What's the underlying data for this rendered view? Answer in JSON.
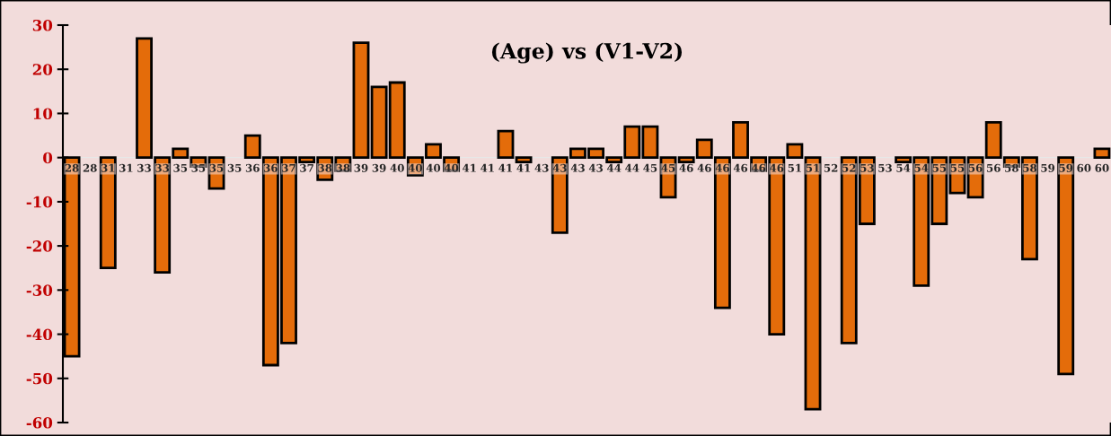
{
  "chart_data": {
    "type": "bar",
    "title": "(Age) vs (V1-V2)",
    "categories": [
      "28",
      "28",
      "31",
      "31",
      "33",
      "33",
      "35",
      "35",
      "35",
      "35",
      "36",
      "36",
      "37",
      "37",
      "38",
      "38",
      "39",
      "39",
      "40",
      "40",
      "40",
      "40",
      "41",
      "41",
      "41",
      "41",
      "43",
      "43",
      "43",
      "43",
      "44",
      "44",
      "45",
      "45",
      "46",
      "46",
      "46",
      "46",
      "46",
      "46",
      "51",
      "51",
      "52",
      "52",
      "53",
      "53",
      "54",
      "54",
      "55",
      "55",
      "56",
      "56",
      "58",
      "58",
      "59",
      "59",
      "60",
      "60"
    ],
    "values": [
      -45,
      null,
      -25,
      null,
      27,
      -26,
      2,
      -2,
      -7,
      null,
      5,
      -47,
      -42,
      -1,
      -5,
      -3,
      26,
      16,
      17,
      -4,
      3,
      -3,
      null,
      null,
      6,
      -1,
      null,
      -17,
      2,
      2,
      -1,
      7,
      7,
      -9,
      -1,
      4,
      -34,
      8,
      -3,
      -40,
      3,
      -57,
      null,
      -42,
      -15,
      null,
      -1,
      -29,
      -15,
      -8,
      -9,
      8,
      -2,
      -23,
      null,
      -49,
      null,
      2
    ],
    "color": "#e46c0a",
    "ylim": [
      -60,
      30
    ],
    "yticks": [
      -60,
      -50,
      -40,
      -30,
      -20,
      -10,
      0,
      10,
      20,
      30
    ],
    "grid": false,
    "legend": false
  }
}
